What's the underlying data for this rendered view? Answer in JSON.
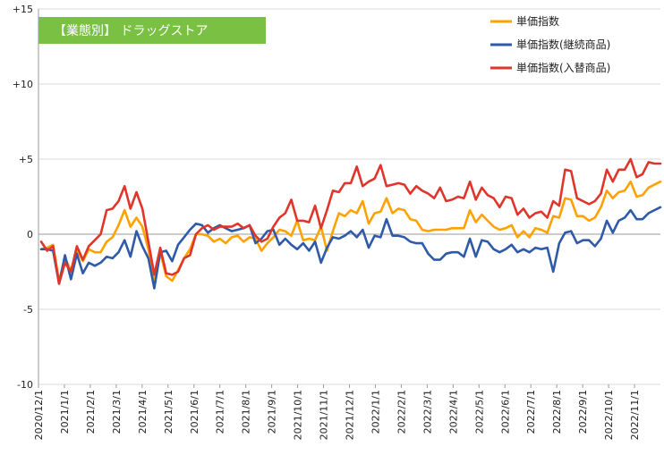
{
  "chart_data": {
    "type": "line",
    "title": "【業態別】 ドラッグストア",
    "ylim": [
      -10,
      15
    ],
    "yticks": [
      {
        "value": 15,
        "label": "+15"
      },
      {
        "value": 10,
        "label": "+10"
      },
      {
        "value": 5,
        "label": "+5"
      },
      {
        "value": 0,
        "label": "0"
      },
      {
        "value": -5,
        "label": "-5"
      },
      {
        "value": -10,
        "label": "-10"
      }
    ],
    "xticks": [
      "2020/12/1",
      "2021/1/1",
      "2021/2/1",
      "2021/3/1",
      "2021/4/1",
      "2021/5/1",
      "2021/6/1",
      "2021/7/1",
      "2021/8/1",
      "2021/9/1",
      "2021/10/1",
      "2021/11/1",
      "2021/12/1",
      "2022/1/1",
      "2022/2/1",
      "2022/3/1",
      "2022/4/1",
      "2022/5/1",
      "2022/6/1",
      "2022/7/1",
      "2022/8/1",
      "2022/9/1",
      "2022/10/1",
      "2022/11/1"
    ],
    "grid": "horizontal",
    "legend_position": "top-right",
    "series": [
      {
        "name": "単価指数",
        "color": "#ffa200",
        "values": [
          -1.0,
          -0.9,
          -0.7,
          -3.1,
          -1.6,
          -2.4,
          -1.0,
          -1.8,
          -1.0,
          -1.2,
          -1.2,
          -0.5,
          -0.2,
          0.6,
          1.6,
          0.5,
          1.1,
          0.5,
          -1.0,
          -3.3,
          -1.2,
          -2.8,
          -3.1,
          -2.4,
          -1.6,
          -1.0,
          0.0,
          0.0,
          -0.1,
          -0.5,
          -0.3,
          -0.6,
          -0.2,
          -0.1,
          -0.5,
          -0.2,
          -0.3,
          -1.1,
          -0.6,
          -0.2,
          0.3,
          0.2,
          -0.1,
          0.9,
          -0.4,
          -0.3,
          -0.4,
          0.5,
          -1.1,
          0.2,
          1.4,
          1.2,
          1.6,
          1.4,
          2.2,
          0.7,
          1.4,
          1.5,
          2.4,
          1.4,
          1.7,
          1.6,
          1.0,
          0.9,
          0.3,
          0.2,
          0.3,
          0.3,
          0.3,
          0.4,
          0.4,
          0.4,
          1.6,
          0.8,
          1.3,
          0.9,
          0.5,
          0.3,
          0.4,
          0.6,
          -0.2,
          0.2,
          -0.2,
          0.4,
          0.3,
          0.1,
          1.2,
          1.1,
          2.4,
          2.3,
          1.2,
          1.2,
          0.9,
          1.1,
          1.8,
          2.9,
          2.4,
          2.8,
          2.9,
          3.5,
          2.5,
          2.6,
          3.1,
          3.3,
          3.5
        ]
      },
      {
        "name": "単価指数(継続商品)",
        "color": "#2f5aa8",
        "values": [
          -1.0,
          -1.0,
          -1.1,
          -3.3,
          -1.4,
          -3.0,
          -1.3,
          -2.6,
          -1.9,
          -2.1,
          -1.9,
          -1.5,
          -1.6,
          -1.2,
          -0.4,
          -1.5,
          0.2,
          -0.8,
          -1.6,
          -3.6,
          -1.2,
          -1.1,
          -1.8,
          -0.7,
          -0.2,
          0.3,
          0.7,
          0.6,
          0.1,
          0.4,
          0.6,
          0.4,
          0.2,
          0.3,
          0.4,
          0.6,
          -0.6,
          -0.3,
          0.2,
          0.3,
          -0.7,
          -0.3,
          -0.7,
          -1.0,
          -0.6,
          -1.1,
          -0.5,
          -1.9,
          -0.9,
          -0.2,
          -0.3,
          -0.1,
          0.2,
          -0.2,
          0.3,
          -0.9,
          -0.1,
          -0.2,
          1.0,
          -0.1,
          -0.1,
          -0.2,
          -0.5,
          -0.6,
          -0.6,
          -1.3,
          -1.7,
          -1.7,
          -1.3,
          -1.2,
          -1.2,
          -1.5,
          -0.3,
          -1.5,
          -0.4,
          -0.5,
          -1.0,
          -1.2,
          -1.0,
          -0.7,
          -1.2,
          -1.0,
          -1.2,
          -0.9,
          -1.0,
          -0.9,
          -2.5,
          -0.6,
          0.1,
          0.2,
          -0.6,
          -0.4,
          -0.4,
          -0.8,
          -0.3,
          0.9,
          0.1,
          0.9,
          1.1,
          1.6,
          1.0,
          1.0,
          1.4,
          1.6,
          1.8
        ]
      },
      {
        "name": "単価指数(入替商品)",
        "color": "#e0352b",
        "values": [
          -0.5,
          -1.1,
          -0.8,
          -3.3,
          -1.9,
          -2.5,
          -0.8,
          -1.7,
          -0.8,
          -0.4,
          0.0,
          1.6,
          1.7,
          2.2,
          3.2,
          1.7,
          2.8,
          1.7,
          -0.5,
          -2.7,
          -0.9,
          -2.6,
          -2.7,
          -2.5,
          -1.6,
          -1.4,
          0.0,
          0.4,
          0.6,
          0.3,
          0.5,
          0.5,
          0.5,
          0.7,
          0.4,
          0.6,
          -0.1,
          -0.5,
          -0.3,
          0.5,
          1.1,
          1.4,
          2.3,
          0.9,
          0.9,
          0.8,
          1.9,
          0.4,
          1.6,
          2.9,
          2.8,
          3.4,
          3.4,
          4.5,
          3.2,
          3.5,
          3.7,
          4.6,
          3.2,
          3.3,
          3.4,
          3.3,
          2.7,
          3.2,
          2.9,
          2.7,
          2.4,
          3.1,
          2.2,
          2.3,
          2.5,
          2.4,
          3.5,
          2.3,
          3.1,
          2.6,
          2.4,
          1.8,
          2.5,
          2.4,
          1.3,
          1.7,
          1.1,
          1.4,
          1.5,
          1.1,
          2.2,
          1.9,
          4.3,
          4.2,
          2.4,
          2.2,
          2.0,
          2.2,
          2.7,
          4.3,
          3.5,
          4.3,
          4.3,
          5.0,
          3.8,
          4.0,
          4.8,
          4.7,
          4.7
        ]
      }
    ]
  }
}
